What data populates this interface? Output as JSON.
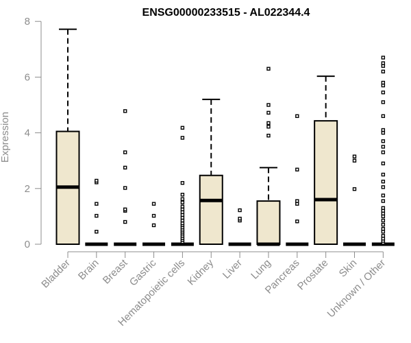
{
  "chart_data": {
    "type": "boxplot",
    "title": "ENSG00000233515 - AL022344.4",
    "xlabel": "",
    "ylabel": "Expression",
    "ylim": [
      0,
      8
    ],
    "yticks": [
      "0",
      "2",
      "4",
      "6",
      "8"
    ],
    "grid": false,
    "box_color": "#efe7ce",
    "line_color": "#000000",
    "axis_color": "#8c8c8c",
    "categories": [
      "Bladder",
      "Brain",
      "Breast",
      "Gastric",
      "Hematopoietic cells",
      "Kidney",
      "Liver",
      "Lung",
      "Pancreas",
      "Prostate",
      "Skin",
      "Unknown / Other"
    ],
    "boxes": [
      {
        "min": 0,
        "q1": 0,
        "median": 2.05,
        "q3": 4.05,
        "max": 7.72,
        "outliers": []
      },
      {
        "min": 0,
        "q1": 0,
        "median": 0,
        "q3": 0,
        "max": 0,
        "outliers": [
          0.45,
          1.02,
          1.45,
          2.22,
          2.28
        ]
      },
      {
        "min": 0,
        "q1": 0,
        "median": 0,
        "q3": 0,
        "max": 0,
        "outliers": [
          0.8,
          1.2,
          1.25,
          2.02,
          2.75,
          3.3,
          4.78
        ]
      },
      {
        "min": 0,
        "q1": 0,
        "median": 0,
        "q3": 0,
        "max": 0,
        "outliers": [
          0.68,
          1.02,
          1.45
        ]
      },
      {
        "min": 0,
        "q1": 0,
        "median": 0,
        "q3": 0,
        "max": 0,
        "outliers": [
          0.08,
          0.15,
          0.22,
          0.3,
          0.38,
          0.45,
          0.52,
          0.6,
          0.68,
          0.75,
          0.85,
          0.95,
          1.05,
          1.15,
          1.25,
          1.35,
          1.5,
          1.62,
          1.78,
          2.2,
          3.82,
          4.18
        ]
      },
      {
        "min": 0,
        "q1": 0,
        "median": 1.57,
        "q3": 2.47,
        "max": 5.2,
        "outliers": []
      },
      {
        "min": 0,
        "q1": 0,
        "median": 0,
        "q3": 0,
        "max": 0,
        "outliers": [
          0.85,
          0.92,
          1.22
        ]
      },
      {
        "min": 0,
        "q1": 0,
        "median": 0,
        "q3": 1.55,
        "max": 2.75,
        "outliers": [
          3.9,
          4.22,
          4.35,
          4.72,
          5.0,
          6.3
        ]
      },
      {
        "min": 0,
        "q1": 0,
        "median": 0,
        "q3": 0,
        "max": 0,
        "outliers": [
          0.82,
          1.45,
          1.55,
          2.68,
          4.6
        ]
      },
      {
        "min": 0,
        "q1": 0,
        "median": 1.6,
        "q3": 4.43,
        "max": 6.03,
        "outliers": []
      },
      {
        "min": 0,
        "q1": 0,
        "median": 0,
        "q3": 0,
        "max": 0,
        "outliers": [
          1.98,
          3.0,
          3.15
        ]
      },
      {
        "min": 0,
        "q1": 0,
        "median": 0,
        "q3": 0,
        "max": 0,
        "outliers": [
          0.05,
          0.12,
          0.2,
          0.3,
          0.45,
          0.55,
          0.7,
          0.85,
          1.0,
          1.1,
          1.2,
          1.3,
          1.55,
          1.75,
          2.05,
          2.25,
          2.5,
          2.9,
          3.3,
          3.5,
          3.7,
          4.0,
          4.1,
          4.6,
          5.1,
          5.45,
          5.7,
          5.8,
          6.2,
          6.4,
          6.5,
          6.7
        ]
      }
    ]
  }
}
